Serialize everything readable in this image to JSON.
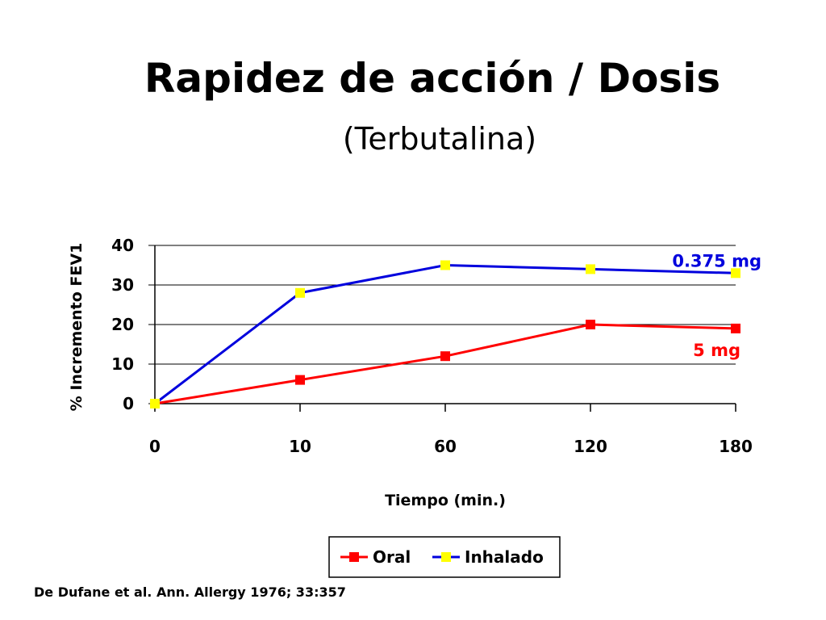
{
  "slide": {
    "title": "Rapidez de acción / Dosis",
    "subtitle": "(Terbutalina)",
    "citation": "De Dufane et al. Ann. Allergy 1976; 33:357"
  },
  "chart_data": {
    "type": "line",
    "categories": [
      "0",
      "10",
      "60",
      "120",
      "180"
    ],
    "xlabel": "Tiempo (min.)",
    "ylabel": "% Incremento FEV1",
    "ylim": [
      0,
      40
    ],
    "yticks": [
      0,
      10,
      20,
      30,
      40
    ],
    "grid": true,
    "legend_position": "bottom",
    "series": [
      {
        "name": "Oral",
        "values": [
          0,
          6,
          12,
          20,
          19
        ],
        "line_color": "#ff0000",
        "marker_color": "#ff0000"
      },
      {
        "name": "Inhalado",
        "values": [
          0,
          28,
          35,
          34,
          33
        ],
        "line_color": "#0000dd",
        "marker_color": "#ffff00"
      }
    ],
    "annotations": [
      {
        "text": "0.375 mg",
        "series": "Inhalado",
        "color": "#0000dd"
      },
      {
        "text": "5 mg",
        "series": "Oral",
        "color": "#ff0000"
      }
    ]
  }
}
